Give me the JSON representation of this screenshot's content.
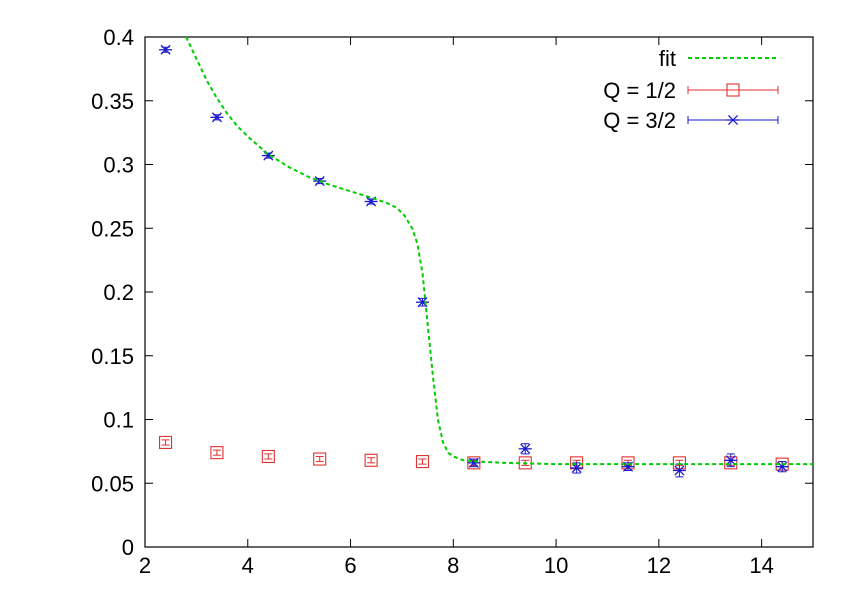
{
  "chart_data": {
    "type": "scatter",
    "title": "",
    "xlabel": "",
    "ylabel": "",
    "xlim": [
      2,
      15
    ],
    "ylim": [
      0,
      0.4
    ],
    "xticks": [
      "2",
      "4",
      "6",
      "8",
      "10",
      "12",
      "14"
    ],
    "yticks": [
      "0",
      "0.05",
      "0.1",
      "0.15",
      "0.2",
      "0.25",
      "0.3",
      "0.35",
      "0.4"
    ],
    "grid": false,
    "legend_position": "top-right",
    "series": [
      {
        "name": "fit",
        "kind": "line",
        "style": "dashed",
        "color": "#00cc00",
        "x": [
          2.8,
          3.0,
          3.2,
          3.4,
          3.6,
          3.8,
          4.0,
          4.4,
          4.8,
          5.2,
          5.6,
          6.0,
          6.4,
          6.7,
          6.9,
          7.05,
          7.2,
          7.3,
          7.4,
          7.5,
          7.6,
          7.7,
          7.8,
          7.9,
          8.0,
          8.2,
          8.5,
          9.0,
          10.0,
          11.0,
          12.0,
          13.0,
          14.0,
          15.0
        ],
        "y": [
          0.4,
          0.383,
          0.366,
          0.352,
          0.34,
          0.33,
          0.322,
          0.308,
          0.298,
          0.29,
          0.284,
          0.279,
          0.274,
          0.27,
          0.266,
          0.26,
          0.25,
          0.238,
          0.215,
          0.175,
          0.135,
          0.1,
          0.082,
          0.074,
          0.071,
          0.068,
          0.067,
          0.066,
          0.065,
          0.065,
          0.065,
          0.065,
          0.065,
          0.065
        ]
      },
      {
        "name": "Q = 1/2",
        "kind": "points",
        "marker": "square",
        "color": "#e03030",
        "x": [
          2.4,
          3.4,
          4.4,
          5.4,
          6.4,
          7.4,
          8.4,
          9.4,
          10.4,
          11.4,
          12.4,
          13.4,
          14.4
        ],
        "y": [
          0.082,
          0.074,
          0.071,
          0.069,
          0.068,
          0.067,
          0.066,
          0.066,
          0.066,
          0.066,
          0.066,
          0.066,
          0.065
        ],
        "err": [
          0.002,
          0.002,
          0.002,
          0.002,
          0.002,
          0.002,
          0.002,
          0.002,
          0.002,
          0.002,
          0.002,
          0.002,
          0.002
        ]
      },
      {
        "name": "Q = 3/2",
        "kind": "points",
        "marker": "star",
        "color": "#1a1acc",
        "x": [
          2.4,
          3.4,
          4.4,
          5.4,
          6.4,
          7.4,
          8.4,
          9.4,
          10.4,
          11.4,
          12.4,
          13.4,
          14.4
        ],
        "y": [
          0.39,
          0.337,
          0.307,
          0.287,
          0.271,
          0.192,
          0.066,
          0.077,
          0.062,
          0.063,
          0.06,
          0.068,
          0.063
        ],
        "err": [
          0.002,
          0.002,
          0.002,
          0.002,
          0.002,
          0.003,
          0.003,
          0.004,
          0.004,
          0.003,
          0.005,
          0.005,
          0.004
        ]
      }
    ]
  }
}
